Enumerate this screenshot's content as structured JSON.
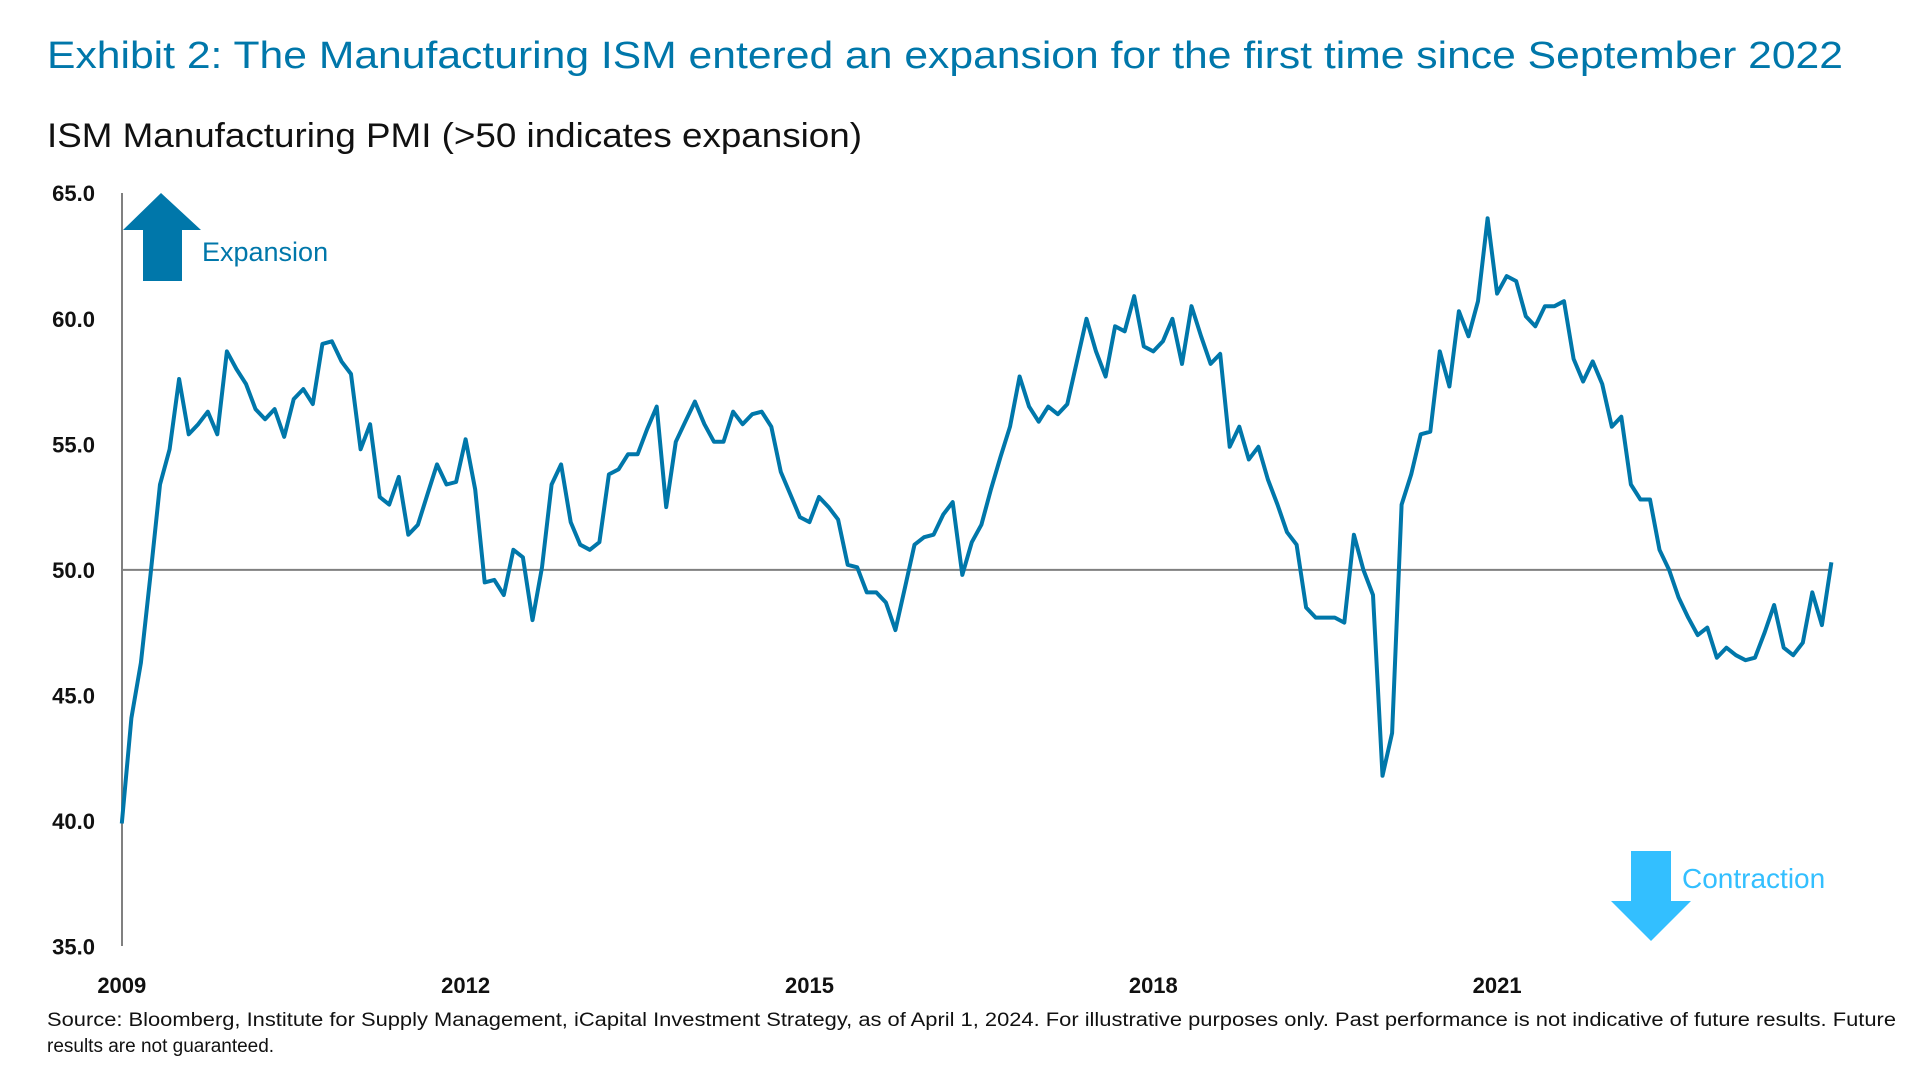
{
  "title": "Exhibit 2: The Manufacturing ISM entered an expansion for the first time since September 2022",
  "subtitle": "ISM Manufacturing PMI (>50 indicates expansion)",
  "annotations": {
    "expansion": "Expansion",
    "contraction": "Contraction",
    "expansion_color": "#0077aa",
    "contraction_color": "#33bfff"
  },
  "source_lines": [
    "Source: Bloomberg, Institute for Supply Management, iCapital Investment Strategy, as of April 1, 2024. For illustrative purposes only. Past performance is not indicative of future results. Future",
    "results are not guaranteed."
  ],
  "chart_data": {
    "type": "line",
    "title": "ISM Manufacturing PMI (>50 indicates expansion)",
    "xlabel": "",
    "ylabel": "",
    "ylim": [
      35,
      65
    ],
    "yticks": [
      "35.0",
      "40.0",
      "45.0",
      "50.0",
      "55.0",
      "60.0",
      "65.0"
    ],
    "xticks": [
      "2009",
      "2012",
      "2015",
      "2018",
      "2021"
    ],
    "reference_line": 50,
    "grid": false,
    "line_color": "#0077aa",
    "series": [
      {
        "values": [
          39.9,
          44.1,
          46.3,
          49.8,
          53.4,
          54.8,
          57.6,
          55.4,
          55.8,
          56.3,
          55.4,
          58.7,
          58.0,
          57.4,
          56.4,
          56.0,
          56.4,
          55.3,
          56.8,
          57.2,
          56.6,
          59.0,
          59.1,
          58.3,
          57.8,
          54.8,
          55.8,
          52.9,
          52.6,
          53.7,
          51.4,
          51.8,
          53.0,
          54.2,
          53.4,
          53.5,
          55.2,
          53.2,
          49.5,
          49.6,
          49.0,
          50.8,
          50.5,
          48.0,
          50.1,
          53.4,
          54.2,
          51.9,
          51.0,
          50.8,
          51.1,
          53.8,
          54.0,
          54.6,
          54.6,
          55.6,
          56.5,
          52.5,
          55.1,
          55.9,
          56.7,
          55.8,
          55.1,
          55.1,
          56.3,
          55.8,
          56.2,
          56.3,
          55.7,
          53.9,
          53.0,
          52.1,
          51.9,
          52.9,
          52.5,
          52.0,
          50.2,
          50.1,
          49.1,
          49.1,
          48.7,
          47.6,
          49.3,
          51.0,
          51.3,
          51.4,
          52.2,
          52.7,
          49.8,
          51.1,
          51.8,
          53.2,
          54.5,
          55.7,
          57.7,
          56.5,
          55.9,
          56.5,
          56.2,
          56.6,
          58.3,
          60.0,
          58.7,
          57.7,
          59.7,
          59.5,
          60.9,
          58.9,
          58.7,
          59.1,
          60.0,
          58.2,
          60.5,
          59.3,
          58.2,
          58.6,
          54.9,
          55.7,
          54.4,
          54.9,
          53.6,
          52.6,
          51.5,
          51.0,
          48.5,
          48.1,
          48.1,
          48.1,
          47.9,
          51.4,
          50.0,
          49.0,
          41.8,
          43.5,
          52.6,
          53.8,
          55.4,
          55.5,
          58.7,
          57.3,
          60.3,
          59.3,
          60.7,
          64.0,
          61.0,
          61.7,
          61.5,
          60.1,
          59.7,
          60.5,
          60.5,
          60.7,
          58.4,
          57.5,
          58.3,
          57.4,
          55.7,
          56.1,
          53.4,
          52.8,
          52.8,
          50.8,
          50.0,
          48.9,
          48.1,
          47.4,
          47.7,
          46.5,
          46.9,
          46.6,
          46.4,
          46.5,
          47.5,
          48.6,
          46.9,
          46.6,
          47.1,
          49.1,
          47.8,
          50.3
        ]
      }
    ]
  }
}
